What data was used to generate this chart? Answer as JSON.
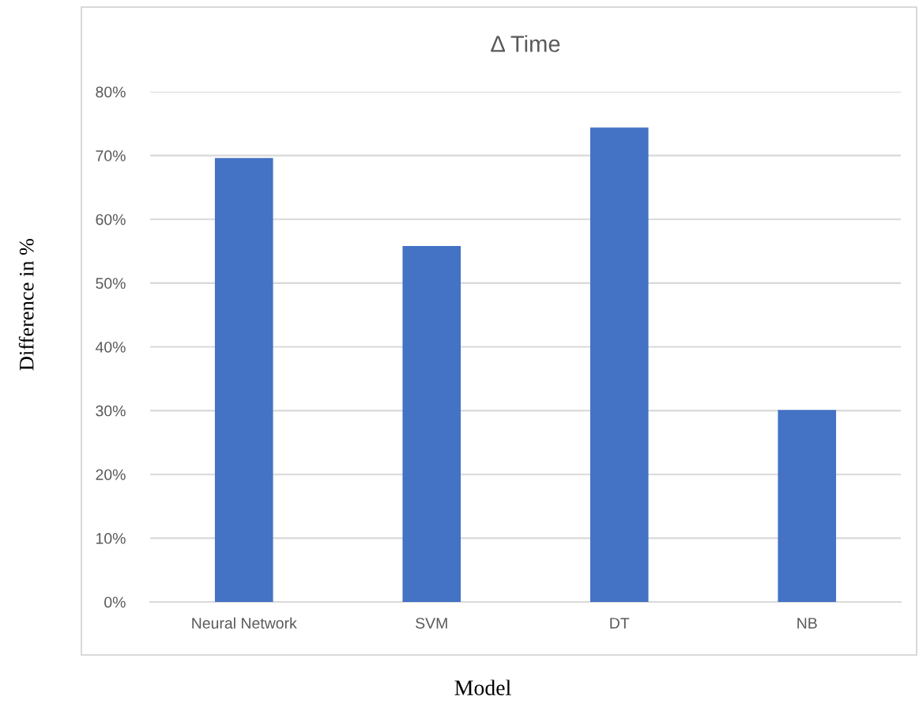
{
  "chart_data": {
    "type": "bar",
    "title": "Δ Time",
    "xlabel": "Model",
    "ylabel": "Difference in %",
    "categories": [
      "Neural Network",
      "SVM",
      "DT",
      "NB"
    ],
    "values": [
      69.6,
      55.8,
      74.4,
      30.1
    ],
    "color": "#4472c4",
    "ylim": [
      0,
      80
    ],
    "yticks": [
      {
        "value": 0,
        "label": "0%"
      },
      {
        "value": 10,
        "label": "10%"
      },
      {
        "value": 20,
        "label": "20%"
      },
      {
        "value": 30,
        "label": "30%"
      },
      {
        "value": 40,
        "label": "40%"
      },
      {
        "value": 50,
        "label": "50%"
      },
      {
        "value": 60,
        "label": "60%"
      },
      {
        "value": 70,
        "label": "70%"
      },
      {
        "value": 80,
        "label": "80%"
      }
    ],
    "grid": "y"
  }
}
